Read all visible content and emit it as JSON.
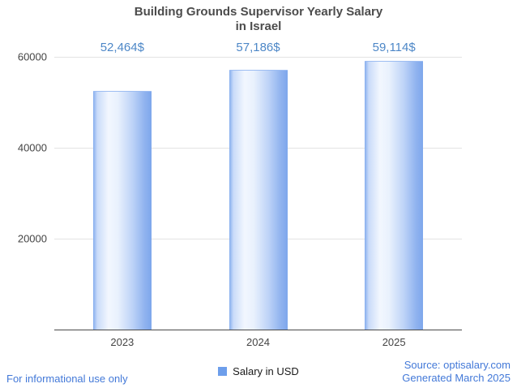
{
  "title": {
    "line1": "Building Grounds Supervisor Yearly Salary",
    "line2": "in Israel"
  },
  "legend": {
    "label": "Salary in USD",
    "marker_color": "#6d9eeb"
  },
  "footer": {
    "left": "For informational use only",
    "source": "Source: optisalary.com",
    "generated": "Generated March 2025"
  },
  "chart_data": {
    "type": "bar",
    "title": "Building Grounds Supervisor Yearly Salary in Israel",
    "categories": [
      "2023",
      "2024",
      "2025"
    ],
    "series": [
      {
        "name": "Salary in USD",
        "values": [
          52464,
          57186,
          59114
        ]
      }
    ],
    "value_labels": [
      "52,464$",
      "57,186$",
      "59,114$"
    ],
    "xlabel": "",
    "ylabel": "",
    "ylim": [
      0,
      60000
    ],
    "yticks": [
      20000,
      40000,
      60000
    ],
    "grid": true,
    "legend_position": "bottom",
    "colors": {
      "bar_fill": "#6d9eeb",
      "annotation_text": "#4d87c7",
      "axis_text": "#444444",
      "gridline": "#e3e3e3",
      "footer_text": "#4379d8",
      "title_text": "#4c4c4c"
    }
  }
}
